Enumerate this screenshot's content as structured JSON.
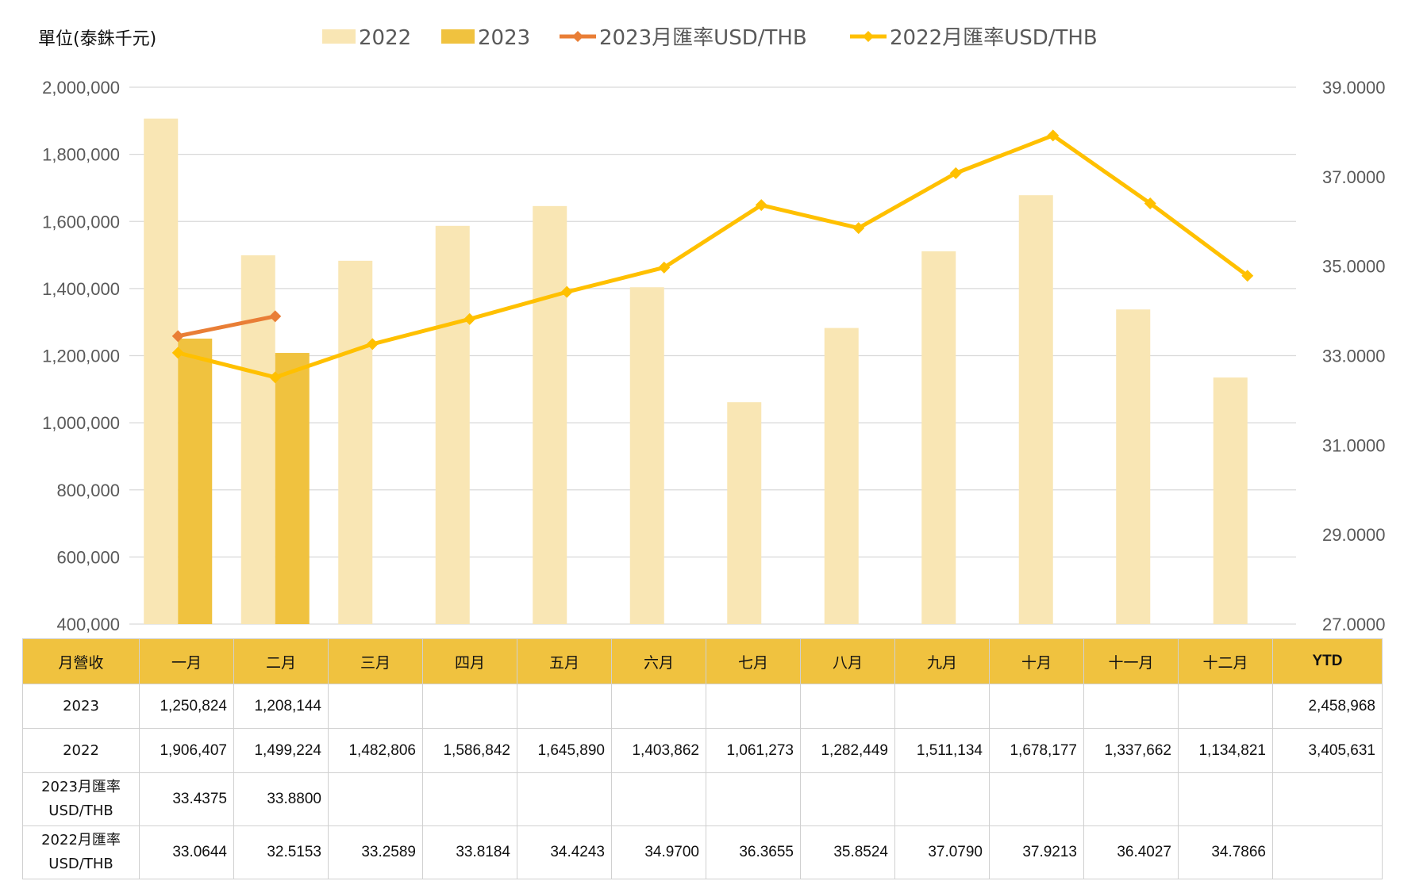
{
  "unit_label": "單位(泰銖千元)",
  "legend": [
    {
      "label": "2022",
      "kind": "bar",
      "color": "#F9E6B4"
    },
    {
      "label": "2023",
      "kind": "bar",
      "color": "#F0C23F"
    },
    {
      "label": "2023月匯率USD/THB",
      "kind": "line",
      "color": "#E97E36"
    },
    {
      "label": "2022月匯率USD/THB",
      "kind": "line",
      "color": "#FFC000"
    }
  ],
  "chart_data": {
    "type": "bar",
    "categories": [
      "一月",
      "二月",
      "三月",
      "四月",
      "五月",
      "六月",
      "七月",
      "八月",
      "九月",
      "十月",
      "十一月",
      "十二月"
    ],
    "series": [
      {
        "name": "2022",
        "type": "bar",
        "axis": "left",
        "color": "#F9E6B4",
        "values": [
          1906407,
          1499224,
          1482806,
          1586842,
          1645890,
          1403862,
          1061273,
          1282449,
          1511134,
          1678177,
          1337662,
          1134821
        ]
      },
      {
        "name": "2023",
        "type": "bar",
        "axis": "left",
        "color": "#F0C23F",
        "values": [
          1250824,
          1208144,
          null,
          null,
          null,
          null,
          null,
          null,
          null,
          null,
          null,
          null
        ]
      },
      {
        "name": "2023月匯率USD/THB",
        "type": "line",
        "axis": "right",
        "color": "#E97E36",
        "values": [
          33.4375,
          33.88,
          null,
          null,
          null,
          null,
          null,
          null,
          null,
          null,
          null,
          null
        ]
      },
      {
        "name": "2022月匯率USD/THB",
        "type": "line",
        "axis": "right",
        "color": "#FFC000",
        "values": [
          33.0644,
          32.5153,
          33.2589,
          33.8184,
          34.4243,
          34.97,
          36.3655,
          35.8524,
          37.079,
          37.9213,
          36.4027,
          34.7866
        ]
      }
    ],
    "ylim_left": [
      400000,
      2000000
    ],
    "ylim_right": [
      27,
      39
    ],
    "yticks_left": [
      "400,000",
      "600,000",
      "800,000",
      "1,000,000",
      "1,200,000",
      "1,400,000",
      "1,600,000",
      "1,800,000",
      "2,000,000"
    ],
    "yticks_right": [
      "27.0000",
      "29.0000",
      "31.0000",
      "33.0000",
      "35.0000",
      "37.0000",
      "39.0000"
    ],
    "grid": true,
    "legend_position": "top"
  },
  "table": {
    "header": [
      "月營收",
      "一月",
      "二月",
      "三月",
      "四月",
      "五月",
      "六月",
      "七月",
      "八月",
      "九月",
      "十月",
      "十一月",
      "十二月",
      "YTD"
    ],
    "rows": [
      {
        "label": "2023",
        "cells": [
          "1,250,824",
          "1,208,144",
          "",
          "",
          "",
          "",
          "",
          "",
          "",
          "",
          "",
          "",
          "2,458,968"
        ]
      },
      {
        "label": "2022",
        "cells": [
          "1,906,407",
          "1,499,224",
          "1,482,806",
          "1,586,842",
          "1,645,890",
          "1,403,862",
          "1,061,273",
          "1,282,449",
          "1,511,134",
          "1,678,177",
          "1,337,662",
          "1,134,821",
          "3,405,631"
        ]
      },
      {
        "label": "2023月匯率\nUSD/THB",
        "cells": [
          "33.4375",
          "33.8800",
          "",
          "",
          "",
          "",
          "",
          "",
          "",
          "",
          "",
          "",
          ""
        ]
      },
      {
        "label": "2022月匯率\nUSD/THB",
        "cells": [
          "33.0644",
          "32.5153",
          "33.2589",
          "33.8184",
          "34.4243",
          "34.9700",
          "36.3655",
          "35.8524",
          "37.0790",
          "37.9213",
          "36.4027",
          "34.7866",
          ""
        ]
      }
    ]
  }
}
